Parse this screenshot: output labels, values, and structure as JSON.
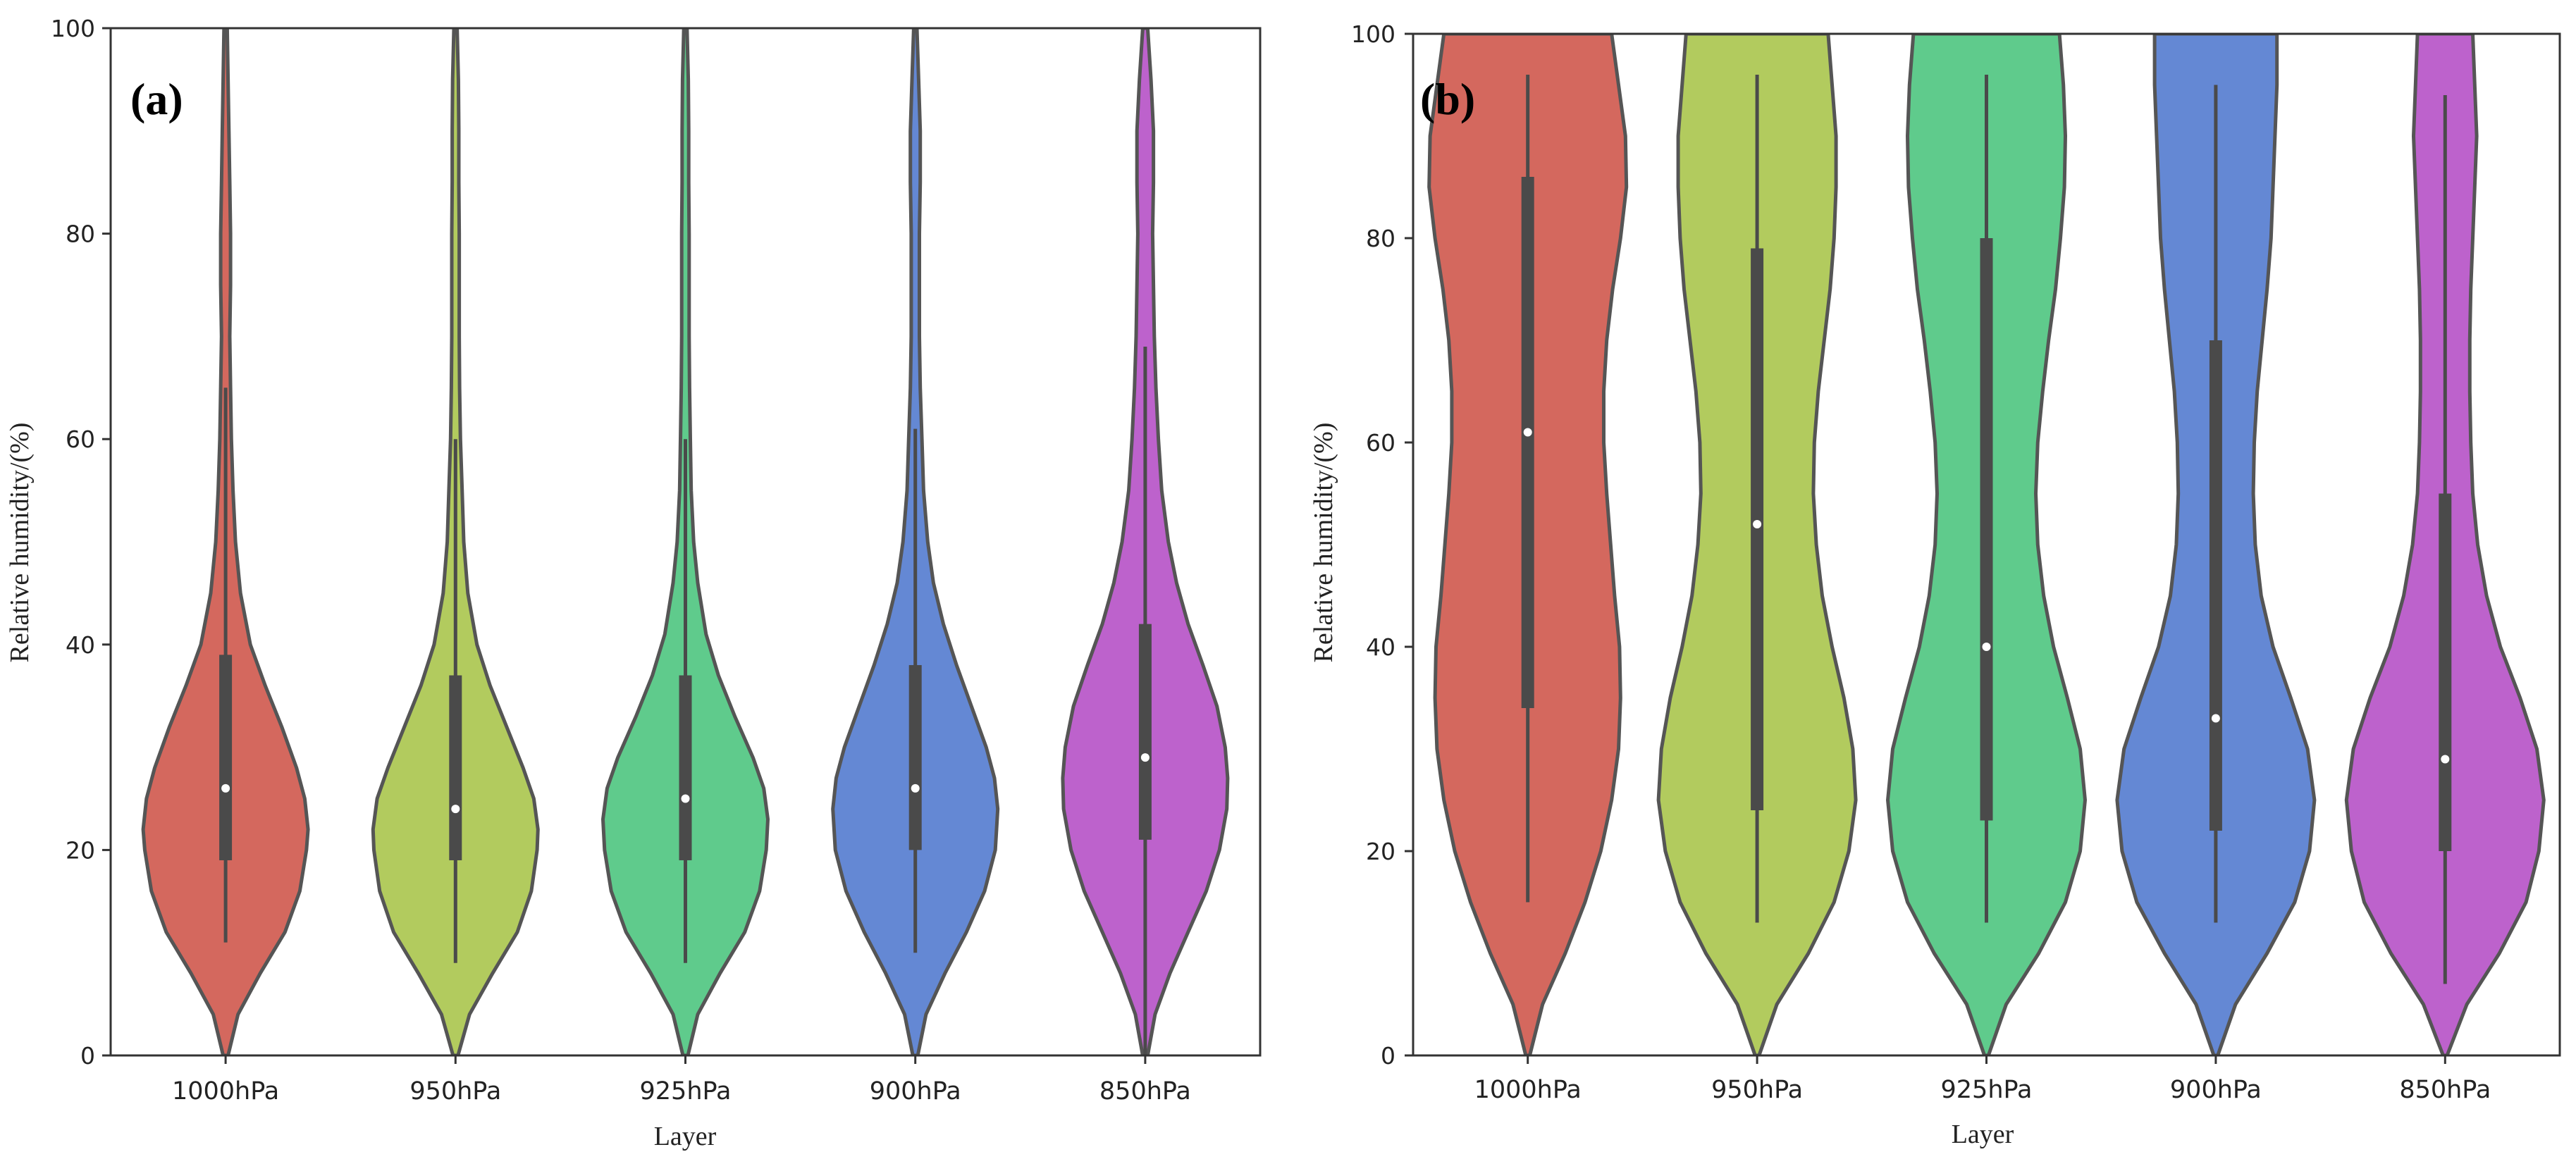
{
  "chart_data": [
    {
      "type": "violin",
      "panel_label": "(a)",
      "xlabel": "Layer",
      "ylabel": "Relative humidity/(%)",
      "ylim": [
        0,
        100
      ],
      "yticks": [
        0,
        20,
        40,
        60,
        80,
        100
      ],
      "categories": [
        "1000hPa",
        "950hPa",
        "925hPa",
        "900hPa",
        "850hPa"
      ],
      "colors": [
        "#d4685e",
        "#b2cb5e",
        "#5fcb8c",
        "#6488d4",
        "#bd62cc"
      ],
      "series": [
        {
          "name": "1000hPa",
          "median": 26,
          "q1": 19,
          "q3": 39,
          "whisker_low": 11,
          "whisker_high": 65,
          "min": 0,
          "max": 100,
          "density": [
            [
              0,
              0.03
            ],
            [
              4,
              0.15
            ],
            [
              8,
              0.42
            ],
            [
              12,
              0.72
            ],
            [
              16,
              0.9
            ],
            [
              20,
              0.98
            ],
            [
              22,
              1.0
            ],
            [
              25,
              0.96
            ],
            [
              28,
              0.86
            ],
            [
              32,
              0.68
            ],
            [
              36,
              0.48
            ],
            [
              40,
              0.3
            ],
            [
              45,
              0.18
            ],
            [
              50,
              0.12
            ],
            [
              55,
              0.09
            ],
            [
              60,
              0.07
            ],
            [
              65,
              0.06
            ],
            [
              70,
              0.05
            ],
            [
              75,
              0.06
            ],
            [
              80,
              0.06
            ],
            [
              85,
              0.05
            ],
            [
              90,
              0.04
            ],
            [
              95,
              0.03
            ],
            [
              100,
              0.02
            ]
          ]
        },
        {
          "name": "950hPa",
          "median": 24,
          "q1": 19,
          "q3": 37,
          "whisker_low": 9,
          "whisker_high": 60,
          "min": 0,
          "max": 100,
          "density": [
            [
              0,
              0.03
            ],
            [
              4,
              0.17
            ],
            [
              8,
              0.45
            ],
            [
              12,
              0.75
            ],
            [
              16,
              0.92
            ],
            [
              20,
              0.99
            ],
            [
              22,
              1.0
            ],
            [
              25,
              0.95
            ],
            [
              28,
              0.82
            ],
            [
              32,
              0.62
            ],
            [
              36,
              0.42
            ],
            [
              40,
              0.26
            ],
            [
              45,
              0.15
            ],
            [
              50,
              0.1
            ],
            [
              55,
              0.08
            ],
            [
              60,
              0.06
            ],
            [
              65,
              0.05
            ],
            [
              70,
              0.045
            ],
            [
              75,
              0.045
            ],
            [
              80,
              0.045
            ],
            [
              85,
              0.04
            ],
            [
              90,
              0.04
            ],
            [
              95,
              0.035
            ],
            [
              100,
              0.02
            ]
          ]
        },
        {
          "name": "925hPa",
          "median": 25,
          "q1": 19,
          "q3": 37,
          "whisker_low": 9,
          "whisker_high": 60,
          "min": 0,
          "max": 100,
          "density": [
            [
              0,
              0.03
            ],
            [
              4,
              0.15
            ],
            [
              8,
              0.42
            ],
            [
              12,
              0.72
            ],
            [
              16,
              0.9
            ],
            [
              20,
              0.98
            ],
            [
              23,
              1.0
            ],
            [
              26,
              0.95
            ],
            [
              29,
              0.82
            ],
            [
              33,
              0.6
            ],
            [
              37,
              0.4
            ],
            [
              41,
              0.25
            ],
            [
              46,
              0.15
            ],
            [
              50,
              0.1
            ],
            [
              55,
              0.07
            ],
            [
              60,
              0.06
            ],
            [
              65,
              0.05
            ],
            [
              70,
              0.045
            ],
            [
              75,
              0.045
            ],
            [
              80,
              0.045
            ],
            [
              85,
              0.04
            ],
            [
              90,
              0.04
            ],
            [
              95,
              0.035
            ],
            [
              100,
              0.02
            ]
          ]
        },
        {
          "name": "900hPa",
          "median": 26,
          "q1": 20,
          "q3": 38,
          "whisker_low": 10,
          "whisker_high": 61,
          "min": 0,
          "max": 100,
          "density": [
            [
              0,
              0.03
            ],
            [
              4,
              0.13
            ],
            [
              8,
              0.36
            ],
            [
              12,
              0.62
            ],
            [
              16,
              0.84
            ],
            [
              20,
              0.97
            ],
            [
              24,
              1.0
            ],
            [
              27,
              0.96
            ],
            [
              30,
              0.86
            ],
            [
              34,
              0.68
            ],
            [
              38,
              0.5
            ],
            [
              42,
              0.34
            ],
            [
              46,
              0.22
            ],
            [
              50,
              0.15
            ],
            [
              55,
              0.1
            ],
            [
              60,
              0.08
            ],
            [
              65,
              0.06
            ],
            [
              70,
              0.05
            ],
            [
              75,
              0.05
            ],
            [
              80,
              0.05
            ],
            [
              85,
              0.06
            ],
            [
              90,
              0.06
            ],
            [
              95,
              0.04
            ],
            [
              100,
              0.02
            ]
          ]
        },
        {
          "name": "850hPa",
          "median": 29,
          "q1": 21,
          "q3": 42,
          "whisker_low": 0,
          "whisker_high": 69,
          "min": 0,
          "max": 100,
          "density": [
            [
              0,
              0.03
            ],
            [
              4,
              0.12
            ],
            [
              8,
              0.3
            ],
            [
              12,
              0.52
            ],
            [
              16,
              0.74
            ],
            [
              20,
              0.9
            ],
            [
              24,
              0.99
            ],
            [
              27,
              1.0
            ],
            [
              30,
              0.97
            ],
            [
              34,
              0.87
            ],
            [
              38,
              0.7
            ],
            [
              42,
              0.52
            ],
            [
              46,
              0.38
            ],
            [
              50,
              0.28
            ],
            [
              55,
              0.2
            ],
            [
              60,
              0.16
            ],
            [
              65,
              0.13
            ],
            [
              70,
              0.11
            ],
            [
              75,
              0.1
            ],
            [
              80,
              0.09
            ],
            [
              85,
              0.1
            ],
            [
              90,
              0.1
            ],
            [
              95,
              0.07
            ],
            [
              100,
              0.03
            ]
          ]
        }
      ]
    },
    {
      "type": "violin",
      "panel_label": "(b)",
      "xlabel": "Layer",
      "ylabel": "Relative humidity/(%)",
      "ylim": [
        0,
        100
      ],
      "yticks": [
        0,
        20,
        40,
        60,
        80,
        100
      ],
      "categories": [
        "1000hPa",
        "950hPa",
        "925hPa",
        "900hPa",
        "850hPa"
      ],
      "colors": [
        "#d4685e",
        "#b2cb5e",
        "#5fcb8c",
        "#6488d4",
        "#bd62cc"
      ],
      "series": [
        {
          "name": "1000hPa",
          "median": 61,
          "q1": 34,
          "q3": 86,
          "whisker_low": 15,
          "whisker_high": 96,
          "min": 0,
          "max": 100,
          "density": [
            [
              0,
              0.02
            ],
            [
              5,
              0.15
            ],
            [
              10,
              0.38
            ],
            [
              15,
              0.58
            ],
            [
              20,
              0.74
            ],
            [
              25,
              0.85
            ],
            [
              30,
              0.92
            ],
            [
              35,
              0.94
            ],
            [
              40,
              0.93
            ],
            [
              45,
              0.88
            ],
            [
              50,
              0.84
            ],
            [
              55,
              0.8
            ],
            [
              60,
              0.77
            ],
            [
              65,
              0.77
            ],
            [
              70,
              0.8
            ],
            [
              75,
              0.86
            ],
            [
              80,
              0.94
            ],
            [
              85,
              1.0
            ],
            [
              90,
              0.99
            ],
            [
              95,
              0.92
            ],
            [
              100,
              0.85
            ]
          ]
        },
        {
          "name": "950hPa",
          "median": 52,
          "q1": 24,
          "q3": 79,
          "whisker_low": 13,
          "whisker_high": 96,
          "min": 0,
          "max": 100,
          "density": [
            [
              0,
              0.02
            ],
            [
              5,
              0.2
            ],
            [
              10,
              0.52
            ],
            [
              15,
              0.78
            ],
            [
              20,
              0.93
            ],
            [
              25,
              1.0
            ],
            [
              30,
              0.97
            ],
            [
              35,
              0.88
            ],
            [
              40,
              0.76
            ],
            [
              45,
              0.66
            ],
            [
              50,
              0.6
            ],
            [
              55,
              0.57
            ],
            [
              60,
              0.58
            ],
            [
              65,
              0.62
            ],
            [
              70,
              0.68
            ],
            [
              75,
              0.74
            ],
            [
              80,
              0.78
            ],
            [
              85,
              0.8
            ],
            [
              90,
              0.8
            ],
            [
              95,
              0.76
            ],
            [
              100,
              0.72
            ]
          ]
        },
        {
          "name": "925hPa",
          "median": 40,
          "q1": 23,
          "q3": 80,
          "whisker_low": 13,
          "whisker_high": 96,
          "min": 0,
          "max": 100,
          "density": [
            [
              0,
              0.02
            ],
            [
              5,
              0.2
            ],
            [
              10,
              0.53
            ],
            [
              15,
              0.8
            ],
            [
              20,
              0.95
            ],
            [
              25,
              1.0
            ],
            [
              30,
              0.95
            ],
            [
              35,
              0.82
            ],
            [
              40,
              0.68
            ],
            [
              45,
              0.58
            ],
            [
              50,
              0.52
            ],
            [
              55,
              0.5
            ],
            [
              60,
              0.52
            ],
            [
              65,
              0.57
            ],
            [
              70,
              0.63
            ],
            [
              75,
              0.7
            ],
            [
              80,
              0.75
            ],
            [
              85,
              0.79
            ],
            [
              90,
              0.8
            ],
            [
              95,
              0.78
            ],
            [
              100,
              0.74
            ]
          ]
        },
        {
          "name": "900hPa",
          "median": 33,
          "q1": 22,
          "q3": 70,
          "whisker_low": 13,
          "whisker_high": 95,
          "min": 0,
          "max": 100,
          "density": [
            [
              0,
              0.02
            ],
            [
              5,
              0.2
            ],
            [
              10,
              0.52
            ],
            [
              15,
              0.8
            ],
            [
              20,
              0.95
            ],
            [
              25,
              1.0
            ],
            [
              30,
              0.93
            ],
            [
              35,
              0.76
            ],
            [
              40,
              0.58
            ],
            [
              45,
              0.46
            ],
            [
              50,
              0.4
            ],
            [
              55,
              0.38
            ],
            [
              60,
              0.39
            ],
            [
              65,
              0.42
            ],
            [
              70,
              0.47
            ],
            [
              75,
              0.52
            ],
            [
              80,
              0.56
            ],
            [
              85,
              0.58
            ],
            [
              90,
              0.6
            ],
            [
              95,
              0.62
            ],
            [
              100,
              0.62
            ]
          ]
        },
        {
          "name": "850hPa",
          "median": 29,
          "q1": 20,
          "q3": 55,
          "whisker_low": 7,
          "whisker_high": 94,
          "min": 0,
          "max": 100,
          "density": [
            [
              0,
              0.02
            ],
            [
              5,
              0.22
            ],
            [
              10,
              0.55
            ],
            [
              15,
              0.82
            ],
            [
              20,
              0.95
            ],
            [
              25,
              1.0
            ],
            [
              30,
              0.93
            ],
            [
              35,
              0.76
            ],
            [
              40,
              0.56
            ],
            [
              45,
              0.42
            ],
            [
              50,
              0.33
            ],
            [
              55,
              0.28
            ],
            [
              60,
              0.26
            ],
            [
              65,
              0.25
            ],
            [
              70,
              0.25
            ],
            [
              75,
              0.26
            ],
            [
              80,
              0.28
            ],
            [
              85,
              0.3
            ],
            [
              90,
              0.32
            ],
            [
              95,
              0.3
            ],
            [
              100,
              0.28
            ]
          ]
        }
      ]
    }
  ]
}
